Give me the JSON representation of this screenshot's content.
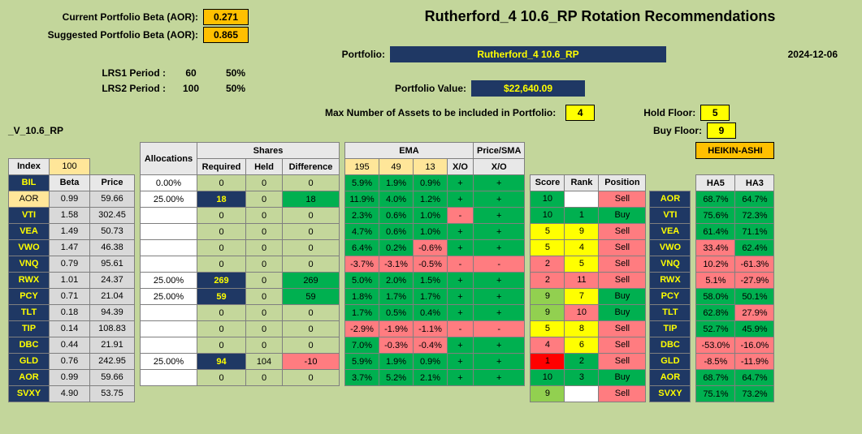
{
  "header": {
    "title": "Rutherford_4 10.6_RP Rotation Recommendations",
    "current_beta_label": "Current Portfolio Beta (AOR):",
    "current_beta": "0.271",
    "suggested_beta_label": "Suggested Portfolio Beta (AOR):",
    "suggested_beta": "0.865",
    "portfolio_label": "Portfolio:",
    "portfolio_name": "Rutherford_4 10.6_RP",
    "date": "2024-12-06",
    "lrs1_label": "LRS1 Period :",
    "lrs1_period": "60",
    "lrs1_weight": "50%",
    "lrs2_label": "LRS2 Period :",
    "lrs2_period": "100",
    "lrs2_weight": "50%",
    "pv_label": "Portfolio Value:",
    "pv": "$22,640.09",
    "max_assets_label": "Max Number of Assets to be included in Portfolio:",
    "max_assets": "4",
    "hold_floor_label": "Hold Floor:",
    "hold_floor": "5",
    "buy_floor_label": "Buy Floor:",
    "buy_floor": "9",
    "sheet_name": "_V_10.6_RP"
  },
  "cols": {
    "index": "Index",
    "index_val": "100",
    "bil": "BIL",
    "beta": "Beta",
    "price": "Price",
    "alloc": "Allocations",
    "shares": "Shares",
    "req": "Required",
    "held": "Held",
    "diff": "Difference",
    "ema": "EMA",
    "e195": "195",
    "e49": "49",
    "e13": "13",
    "xo": "X/O",
    "psma": "Price/SMA",
    "score": "Score",
    "rank": "Rank",
    "pos": "Position",
    "ha": "HEIKIN-ASHI",
    "ha5": "HA5",
    "ha3": "HA3"
  },
  "rows": [
    {
      "t": "AOR",
      "beta": "0.99",
      "price": "59.66",
      "alloc": "0.00%",
      "req": "0",
      "held": "0",
      "diff": "0",
      "e195": "5.9%",
      "e49": "1.9%",
      "e13": "0.9%",
      "x1": "+",
      "x2": "+",
      "score": "10",
      "rank": "",
      "pos": "Sell",
      "ha5": "68.7%",
      "ha3": "64.7%",
      "ec": [
        "g",
        "g",
        "g"
      ],
      "xc": [
        "g",
        "g"
      ],
      "sc": "g",
      "rc": "",
      "pc": "r",
      "h5": "g",
      "h3": "g",
      "t2": "AOR",
      "tanrow": true
    },
    {
      "t": "VTI",
      "beta": "1.58",
      "price": "302.45",
      "alloc": "25.00%",
      "req": "18",
      "held": "0",
      "diff": "18",
      "e195": "11.9%",
      "e49": "4.0%",
      "e13": "1.2%",
      "x1": "+",
      "x2": "+",
      "score": "10",
      "rank": "1",
      "pos": "Buy",
      "ha5": "75.6%",
      "ha3": "72.3%",
      "ec": [
        "g",
        "g",
        "g"
      ],
      "xc": [
        "g",
        "g"
      ],
      "sc": "g",
      "rc": "g",
      "pc": "g",
      "h5": "g",
      "h3": "g",
      "t2": "VTI",
      "reqnavy": true
    },
    {
      "t": "VEA",
      "beta": "1.49",
      "price": "50.73",
      "alloc": "",
      "req": "0",
      "held": "0",
      "diff": "0",
      "e195": "2.3%",
      "e49": "0.6%",
      "e13": "1.0%",
      "x1": "-",
      "x2": "+",
      "score": "5",
      "rank": "9",
      "pos": "Sell",
      "ha5": "61.4%",
      "ha3": "71.1%",
      "ec": [
        "g",
        "g",
        "g"
      ],
      "xc": [
        "r",
        "g"
      ],
      "sc": "y",
      "rc": "y",
      "pc": "r",
      "h5": "g",
      "h3": "g",
      "t2": "VEA"
    },
    {
      "t": "VWO",
      "beta": "1.47",
      "price": "46.38",
      "alloc": "",
      "req": "0",
      "held": "0",
      "diff": "0",
      "e195": "4.7%",
      "e49": "0.6%",
      "e13": "1.0%",
      "x1": "+",
      "x2": "+",
      "score": "5",
      "rank": "4",
      "pos": "Sell",
      "ha5": "33.4%",
      "ha3": "62.4%",
      "ec": [
        "g",
        "g",
        "g"
      ],
      "xc": [
        "g",
        "g"
      ],
      "sc": "y",
      "rc": "y",
      "pc": "r",
      "h5": "r",
      "h3": "g",
      "t2": "VWO"
    },
    {
      "t": "VNQ",
      "beta": "0.79",
      "price": "95.61",
      "alloc": "",
      "req": "0",
      "held": "0",
      "diff": "0",
      "e195": "6.4%",
      "e49": "0.2%",
      "e13": "-0.6%",
      "x1": "+",
      "x2": "+",
      "score": "2",
      "rank": "5",
      "pos": "Sell",
      "ha5": "10.2%",
      "ha3": "-61.3%",
      "ec": [
        "g",
        "g",
        "r"
      ],
      "xc": [
        "g",
        "g"
      ],
      "sc": "r",
      "rc": "y",
      "pc": "r",
      "h5": "r",
      "h3": "r",
      "t2": "VNQ"
    },
    {
      "t": "RWX",
      "beta": "1.01",
      "price": "24.37",
      "alloc": "",
      "req": "0",
      "held": "0",
      "diff": "0",
      "e195": "-3.7%",
      "e49": "-3.1%",
      "e13": "-0.5%",
      "x1": "-",
      "x2": "-",
      "score": "2",
      "rank": "11",
      "pos": "Sell",
      "ha5": "5.1%",
      "ha3": "-27.9%",
      "ec": [
        "r",
        "r",
        "r"
      ],
      "xc": [
        "r",
        "r"
      ],
      "sc": "r",
      "rc": "r",
      "pc": "r",
      "h5": "r",
      "h3": "r",
      "t2": "RWX"
    },
    {
      "t": "PCY",
      "beta": "0.71",
      "price": "21.04",
      "alloc": "25.00%",
      "req": "269",
      "held": "0",
      "diff": "269",
      "e195": "5.0%",
      "e49": "2.0%",
      "e13": "1.5%",
      "x1": "+",
      "x2": "+",
      "score": "9",
      "rank": "7",
      "pos": "Buy",
      "ha5": "58.0%",
      "ha3": "50.1%",
      "ec": [
        "g",
        "g",
        "g"
      ],
      "xc": [
        "g",
        "g"
      ],
      "sc": "lg",
      "rc": "y",
      "pc": "g",
      "h5": "g",
      "h3": "g",
      "t2": "PCY",
      "reqnavy": true
    },
    {
      "t": "TLT",
      "beta": "0.18",
      "price": "94.39",
      "alloc": "25.00%",
      "req": "59",
      "held": "0",
      "diff": "59",
      "e195": "1.8%",
      "e49": "1.7%",
      "e13": "1.7%",
      "x1": "+",
      "x2": "+",
      "score": "9",
      "rank": "10",
      "pos": "Buy",
      "ha5": "62.8%",
      "ha3": "27.9%",
      "ec": [
        "g",
        "g",
        "g"
      ],
      "xc": [
        "g",
        "g"
      ],
      "sc": "lg",
      "rc": "r",
      "pc": "g",
      "h5": "g",
      "h3": "r",
      "t2": "TLT",
      "reqnavy": true
    },
    {
      "t": "TIP",
      "beta": "0.14",
      "price": "108.83",
      "alloc": "",
      "req": "0",
      "held": "0",
      "diff": "0",
      "e195": "1.7%",
      "e49": "0.5%",
      "e13": "0.4%",
      "x1": "+",
      "x2": "+",
      "score": "5",
      "rank": "8",
      "pos": "Sell",
      "ha5": "52.7%",
      "ha3": "45.9%",
      "ec": [
        "g",
        "g",
        "g"
      ],
      "xc": [
        "g",
        "g"
      ],
      "sc": "y",
      "rc": "y",
      "pc": "r",
      "h5": "g",
      "h3": "g",
      "t2": "TIP"
    },
    {
      "t": "DBC",
      "beta": "0.44",
      "price": "21.91",
      "alloc": "",
      "req": "0",
      "held": "0",
      "diff": "0",
      "e195": "-2.9%",
      "e49": "-1.9%",
      "e13": "-1.1%",
      "x1": "-",
      "x2": "-",
      "score": "4",
      "rank": "6",
      "pos": "Sell",
      "ha5": "-53.0%",
      "ha3": "-16.0%",
      "ec": [
        "r",
        "r",
        "r"
      ],
      "xc": [
        "r",
        "r"
      ],
      "sc": "r",
      "rc": "y",
      "pc": "r",
      "h5": "r",
      "h3": "r",
      "t2": "DBC"
    },
    {
      "t": "GLD",
      "beta": "0.76",
      "price": "242.95",
      "alloc": "",
      "req": "0",
      "held": "0",
      "diff": "0",
      "e195": "7.0%",
      "e49": "-0.3%",
      "e13": "-0.4%",
      "x1": "+",
      "x2": "+",
      "score": "1",
      "rank": "2",
      "pos": "Sell",
      "ha5": "-8.5%",
      "ha3": "-11.9%",
      "ec": [
        "g",
        "r",
        "r"
      ],
      "xc": [
        "g",
        "g"
      ],
      "sc": "dr",
      "rc": "g",
      "pc": "r",
      "h5": "r",
      "h3": "r",
      "t2": "GLD"
    },
    {
      "t": "AOR",
      "beta": "0.99",
      "price": "59.66",
      "alloc": "25.00%",
      "req": "94",
      "held": "104",
      "diff": "-10",
      "e195": "5.9%",
      "e49": "1.9%",
      "e13": "0.9%",
      "x1": "+",
      "x2": "+",
      "score": "10",
      "rank": "3",
      "pos": "Buy",
      "ha5": "68.7%",
      "ha3": "64.7%",
      "ec": [
        "g",
        "g",
        "g"
      ],
      "xc": [
        "g",
        "g"
      ],
      "sc": "g",
      "rc": "g",
      "pc": "g",
      "h5": "g",
      "h3": "g",
      "t2": "AOR",
      "reqnavy": true,
      "diffred": true
    },
    {
      "t": "SVXY",
      "beta": "4.90",
      "price": "53.75",
      "alloc": "",
      "req": "0",
      "held": "0",
      "diff": "0",
      "e195": "3.7%",
      "e49": "5.2%",
      "e13": "2.1%",
      "x1": "+",
      "x2": "+",
      "score": "9",
      "rank": "",
      "pos": "Sell",
      "ha5": "75.1%",
      "ha3": "73.2%",
      "ec": [
        "g",
        "g",
        "g"
      ],
      "xc": [
        "g",
        "g"
      ],
      "sc": "lg",
      "rc": "",
      "pc": "r",
      "h5": "g",
      "h3": "g",
      "t2": "SVXY"
    }
  ]
}
